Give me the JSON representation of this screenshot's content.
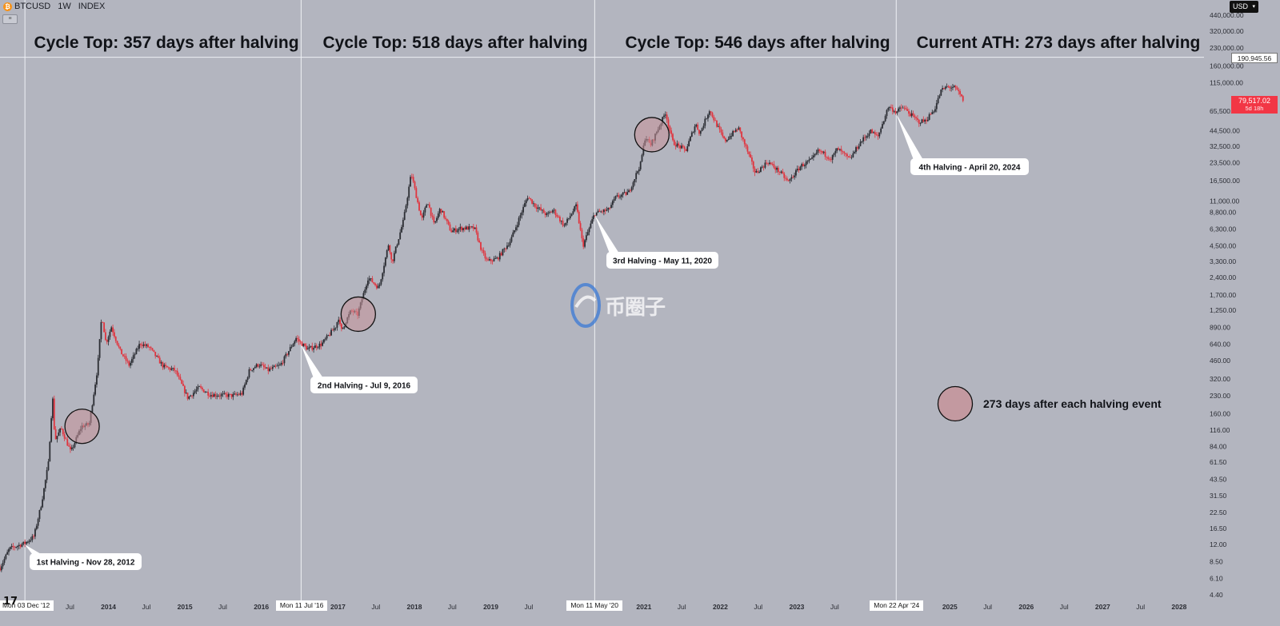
{
  "header": {
    "symbol": "BTCUSD",
    "interval": "1W",
    "exchange": "INDEX",
    "currency": "USD"
  },
  "chart_data": {
    "type": "candlestick",
    "scale": "log",
    "ylim": [
      4.4,
      440000
    ],
    "x_range": [
      "2012-08-01",
      "2028-02-01"
    ],
    "y_ticks": [
      "440,000.00",
      "320,000.00",
      "230,000.00",
      "160,000.00",
      "115,000.00",
      "65,500.00",
      "44,500.00",
      "32,500.00",
      "23,500.00",
      "16,500.00",
      "11,000.00",
      "8,800.00",
      "6,300.00",
      "4,500.00",
      "3,300.00",
      "2,400.00",
      "1,700.00",
      "1,250.00",
      "890.00",
      "640.00",
      "460.00",
      "320.00",
      "230.00",
      "160.00",
      "116.00",
      "84.00",
      "61.50",
      "43.50",
      "31.50",
      "22.50",
      "16.50",
      "12.00",
      "8.50",
      "6.10",
      "4.40"
    ],
    "x_ticks": [
      "Jul",
      "2014",
      "Jul",
      "2015",
      "Jul",
      "2016",
      "2017",
      "Jul",
      "2018",
      "Jul",
      "2019",
      "Jul",
      "2021",
      "Jul",
      "2022",
      "Jul",
      "2023",
      "Jul",
      "2025",
      "Jul",
      "2026",
      "Jul",
      "2027",
      "Jul",
      "2028"
    ],
    "x_tags": [
      "Mon 03 Dec '12",
      "Mon 11 Jul '16",
      "Mon 11 May '20",
      "Mon 22 Apr '24"
    ],
    "crosshair_price": "190,945.56",
    "last_price": "79,517.02",
    "countdown": "5d 18h",
    "price_path": [
      [
        "2012-08-01",
        7.5
      ],
      [
        "2012-09-15",
        11
      ],
      [
        "2012-11-28",
        12.3
      ],
      [
        "2013-01-10",
        14
      ],
      [
        "2013-02-15",
        27
      ],
      [
        "2013-03-20",
        60
      ],
      [
        "2013-04-09",
        230
      ],
      [
        "2013-04-20",
        95
      ],
      [
        "2013-05-20",
        120
      ],
      [
        "2013-07-05",
        75
      ],
      [
        "2013-08-25",
        125
      ],
      [
        "2013-10-01",
        130
      ],
      [
        "2013-11-10",
        400
      ],
      [
        "2013-11-30",
        1150
      ],
      [
        "2013-12-20",
        650
      ],
      [
        "2014-01-15",
        900
      ],
      [
        "2014-02-25",
        560
      ],
      [
        "2014-04-10",
        420
      ],
      [
        "2014-06-01",
        650
      ],
      [
        "2014-07-15",
        600
      ],
      [
        "2014-09-20",
        410
      ],
      [
        "2014-11-15",
        380
      ],
      [
        "2015-01-15",
        220
      ],
      [
        "2015-03-10",
        270
      ],
      [
        "2015-05-01",
        235
      ],
      [
        "2015-08-20",
        230
      ],
      [
        "2015-10-01",
        240
      ],
      [
        "2015-11-05",
        380
      ],
      [
        "2015-12-20",
        430
      ],
      [
        "2016-02-01",
        380
      ],
      [
        "2016-04-01",
        420
      ],
      [
        "2016-06-15",
        720
      ],
      [
        "2016-07-09",
        650
      ],
      [
        "2016-08-10",
        580
      ],
      [
        "2016-10-15",
        640
      ],
      [
        "2016-12-20",
        900
      ],
      [
        "2017-01-05",
        1100
      ],
      [
        "2017-01-15",
        820
      ],
      [
        "2017-03-05",
        1250
      ],
      [
        "2017-04-05",
        1150
      ],
      [
        "2017-05-25",
        2400
      ],
      [
        "2017-07-15",
        1950
      ],
      [
        "2017-09-01",
        4800
      ],
      [
        "2017-09-15",
        3200
      ],
      [
        "2017-11-10",
        7500
      ],
      [
        "2017-12-17",
        19000
      ],
      [
        "2018-02-05",
        7500
      ],
      [
        "2018-03-05",
        11000
      ],
      [
        "2018-04-05",
        6800
      ],
      [
        "2018-05-05",
        9500
      ],
      [
        "2018-06-25",
        6000
      ],
      [
        "2018-08-10",
        6400
      ],
      [
        "2018-10-15",
        6400
      ],
      [
        "2018-11-20",
        4000
      ],
      [
        "2018-12-15",
        3300
      ],
      [
        "2019-02-01",
        3500
      ],
      [
        "2019-04-05",
        5000
      ],
      [
        "2019-06-26",
        12000
      ],
      [
        "2019-08-01",
        10000
      ],
      [
        "2019-09-26",
        8300
      ],
      [
        "2019-10-26",
        9200
      ],
      [
        "2019-12-17",
        6700
      ],
      [
        "2020-02-13",
        10000
      ],
      [
        "2020-03-16",
        4500
      ],
      [
        "2020-05-11",
        8600
      ],
      [
        "2020-07-15",
        9200
      ],
      [
        "2020-08-20",
        11800
      ],
      [
        "2020-10-20",
        13000
      ],
      [
        "2020-12-16",
        23000
      ],
      [
        "2021-01-08",
        40000
      ],
      [
        "2021-02-01",
        33000
      ],
      [
        "2021-04-14",
        63500
      ],
      [
        "2021-05-20",
        35000
      ],
      [
        "2021-07-20",
        30000
      ],
      [
        "2021-09-05",
        51000
      ],
      [
        "2021-09-25",
        42000
      ],
      [
        "2021-11-10",
        67000
      ],
      [
        "2022-01-22",
        36000
      ],
      [
        "2022-03-28",
        47000
      ],
      [
        "2022-05-12",
        29000
      ],
      [
        "2022-06-18",
        19000
      ],
      [
        "2022-08-15",
        24000
      ],
      [
        "2022-10-15",
        19300
      ],
      [
        "2022-11-21",
        16000
      ],
      [
        "2023-01-20",
        22000
      ],
      [
        "2023-03-15",
        25000
      ],
      [
        "2023-04-15",
        30000
      ],
      [
        "2023-06-15",
        25500
      ],
      [
        "2023-07-15",
        31000
      ],
      [
        "2023-09-11",
        25000
      ],
      [
        "2023-10-30",
        35000
      ],
      [
        "2023-12-20",
        44000
      ],
      [
        "2024-01-23",
        39000
      ],
      [
        "2024-03-14",
        72000
      ],
      [
        "2024-04-20",
        64000
      ],
      [
        "2024-05-20",
        71000
      ],
      [
        "2024-08-05",
        53000
      ],
      [
        "2024-09-06",
        54000
      ],
      [
        "2024-10-20",
        68000
      ],
      [
        "2024-11-20",
        98000
      ],
      [
        "2024-12-17",
        106000
      ],
      [
        "2025-01-20",
        105000
      ],
      [
        "2025-02-10",
        96000
      ],
      [
        "2025-03-01",
        84000
      ],
      [
        "2025-03-10",
        79517
      ]
    ]
  },
  "annotations": {
    "cycle_tops": [
      "Cycle Top: 357 days after halving",
      "Cycle Top: 518 days after halving",
      "Cycle Top: 546 days after halving",
      "Current ATH: 273 days after halving"
    ],
    "halvings": [
      "1st Halving - Nov 28, 2012",
      "2nd Halving - Jul 9, 2016",
      "3rd Halving - May 11, 2020",
      "4th Halving - April 20, 2024"
    ],
    "legend": "273 days after each halving event"
  },
  "watermark": "币圈子",
  "colors": {
    "background": "#b3b5bf",
    "up": "#2b2d33",
    "down": "#e0353f",
    "circle": "#c79299",
    "price_tag": "#f23645"
  }
}
